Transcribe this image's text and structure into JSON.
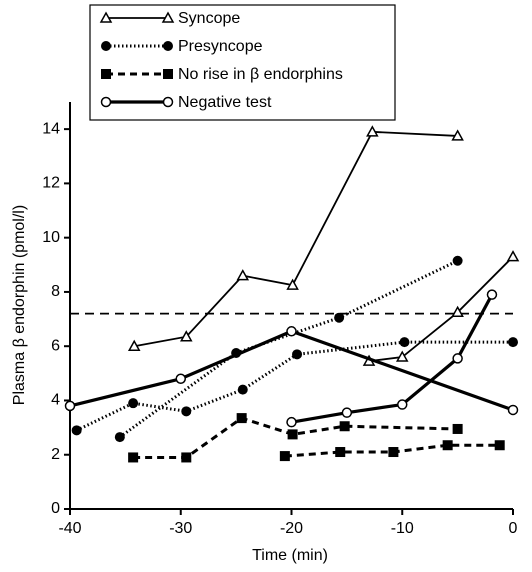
{
  "chart_data": {
    "type": "line",
    "x_label": "Time (min)",
    "y_label": "Plasma β endorphin (pmol/l)",
    "xlim": [
      -40,
      0
    ],
    "xticks": [
      -40,
      -30,
      -20,
      -10,
      0
    ],
    "ylim": [
      0,
      15
    ],
    "yticks": [
      0,
      2,
      4,
      6,
      8,
      10,
      12,
      14
    ],
    "reference_line": 7.2,
    "series": [
      {
        "name": "Syncope",
        "marker": "open-triangle",
        "line_style": "solid",
        "color": "#000000",
        "lines": [
          {
            "x": [
              -34.2,
              -29.5,
              -24.4,
              -19.9,
              -12.7,
              -5
            ],
            "values": [
              6.0,
              6.35,
              8.6,
              8.25,
              13.9,
              13.75
            ]
          },
          {
            "x": [
              -13,
              -10,
              -5,
              0
            ],
            "values": [
              5.45,
              5.6,
              7.25,
              9.3
            ]
          }
        ]
      },
      {
        "name": "Presyncope",
        "marker": "filled-circle",
        "line_style": "dotted",
        "color": "#000000",
        "lines": [
          {
            "x": [
              -39.4,
              -34.3,
              -29.5,
              -24.4,
              -19.5,
              -9.8,
              0
            ],
            "values": [
              2.9,
              3.9,
              3.6,
              4.4,
              5.7,
              6.15,
              6.15
            ]
          },
          {
            "x": [
              -35.5,
              -25,
              -15.7,
              -5
            ],
            "values": [
              2.65,
              5.75,
              7.05,
              9.15
            ]
          }
        ]
      },
      {
        "name": "No rise in β endorphins",
        "marker": "filled-square",
        "line_style": "dashed",
        "color": "#000000",
        "lines": [
          {
            "x": [
              -34.3,
              -29.5,
              -24.5,
              -19.9,
              -15.2,
              -5
            ],
            "values": [
              1.9,
              1.9,
              3.35,
              2.75,
              3.05,
              2.95
            ]
          },
          {
            "x": [
              -20.6,
              -15.6,
              -10.8,
              -5.9,
              -1.2
            ],
            "values": [
              1.95,
              2.1,
              2.1,
              2.35,
              2.35
            ]
          }
        ]
      },
      {
        "name": "Negative test",
        "marker": "open-circle",
        "line_style": "thick",
        "color": "#000000",
        "lines": [
          {
            "x": [
              -40,
              -30,
              -20,
              0
            ],
            "values": [
              3.8,
              4.8,
              6.55,
              3.65
            ]
          },
          {
            "x": [
              -20,
              -15,
              -10,
              -5,
              -1.9
            ],
            "values": [
              3.2,
              3.55,
              3.85,
              5.55,
              7.9
            ]
          }
        ]
      }
    ]
  }
}
